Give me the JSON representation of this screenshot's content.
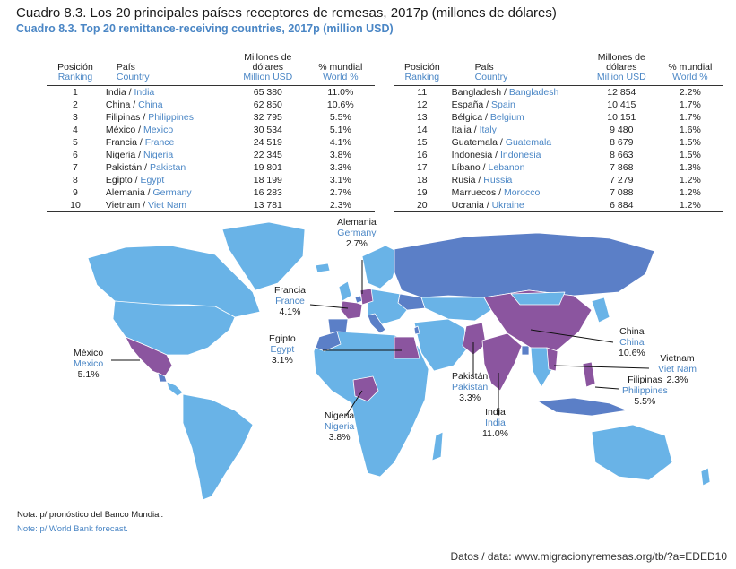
{
  "title": "Cuadro 8.3. Los 20 principales países receptores de remesas, 2017p (millones de dólares)",
  "subtitle": "Cuadro 8.3. Top 20 remittance-receiving countries, 2017p (million USD)",
  "headers": {
    "pos_es": "Posición",
    "pos_en": "Ranking",
    "country_es": "País",
    "country_en": "Country",
    "val_es": "Millones de dólares",
    "val_en": "Million USD",
    "pct_es": "% mundial",
    "pct_en": "World %"
  },
  "left_rows": [
    {
      "rank": "1",
      "es": "India",
      "en": "India",
      "value": "65 380",
      "pct": "11.0%"
    },
    {
      "rank": "2",
      "es": "China",
      "en": "China",
      "value": "62 850",
      "pct": "10.6%"
    },
    {
      "rank": "3",
      "es": "Filipinas",
      "en": "Philippines",
      "value": "32 795",
      "pct": "5.5%"
    },
    {
      "rank": "4",
      "es": "México",
      "en": "Mexico",
      "value": "30 534",
      "pct": "5.1%"
    },
    {
      "rank": "5",
      "es": "Francia",
      "en": "France",
      "value": "24 519",
      "pct": "4.1%"
    },
    {
      "rank": "6",
      "es": "Nigeria",
      "en": "Nigeria",
      "value": "22 345",
      "pct": "3.8%"
    },
    {
      "rank": "7",
      "es": "Pakistán",
      "en": "Pakistan",
      "value": "19 801",
      "pct": "3.3%"
    },
    {
      "rank": "8",
      "es": "Egipto",
      "en": "Egypt",
      "value": "18 199",
      "pct": "3.1%"
    },
    {
      "rank": "9",
      "es": "Alemania",
      "en": "Germany",
      "value": "16 283",
      "pct": "2.7%"
    },
    {
      "rank": "10",
      "es": "Vietnam",
      "en": "Viet Nam",
      "value": "13 781",
      "pct": "2.3%"
    }
  ],
  "right_rows": [
    {
      "rank": "11",
      "es": "Bangladesh",
      "en": "Bangladesh",
      "value": "12 854",
      "pct": "2.2%"
    },
    {
      "rank": "12",
      "es": "España",
      "en": "Spain",
      "value": "10 415",
      "pct": "1.7%"
    },
    {
      "rank": "13",
      "es": "Bélgica",
      "en": "Belgium",
      "value": "10 151",
      "pct": "1.7%"
    },
    {
      "rank": "14",
      "es": "Italia",
      "en": "Italy",
      "value": "9 480",
      "pct": "1.6%"
    },
    {
      "rank": "15",
      "es": "Guatemala",
      "en": "Guatemala",
      "value": "8 679",
      "pct": "1.5%"
    },
    {
      "rank": "16",
      "es": "Indonesia",
      "en": "Indonesia",
      "value": "8 663",
      "pct": "1.5%"
    },
    {
      "rank": "17",
      "es": "Líbano",
      "en": "Lebanon",
      "value": "7 868",
      "pct": "1.3%"
    },
    {
      "rank": "18",
      "es": "Rusia",
      "en": "Russia",
      "value": "7 279",
      "pct": "1.2%"
    },
    {
      "rank": "19",
      "es": "Marruecos",
      "en": "Morocco",
      "value": "7 088",
      "pct": "1.2%"
    },
    {
      "rank": "20",
      "es": "Ucrania",
      "en": "Ukraine",
      "value": "6 884",
      "pct": "1.2%"
    }
  ],
  "map_labels": {
    "germany": {
      "es": "Alemania",
      "en": "Germany",
      "pct": "2.7%"
    },
    "france": {
      "es": "Francia",
      "en": "France",
      "pct": "4.1%"
    },
    "egypt": {
      "es": "Egipto",
      "en": "Egypt",
      "pct": "3.1%"
    },
    "mexico": {
      "es": "México",
      "en": "Mexico",
      "pct": "5.1%"
    },
    "nigeria": {
      "es": "Nigeria",
      "en": "Nigeria",
      "pct": "3.8%"
    },
    "pakistan": {
      "es": "Pakistán",
      "en": "Pakistan",
      "pct": "3.3%"
    },
    "india": {
      "es": "India",
      "en": "India",
      "pct": "11.0%"
    },
    "china": {
      "es": "China",
      "en": "China",
      "pct": "10.6%"
    },
    "vietnam": {
      "es": "Vietnam",
      "en": "Viet Nam",
      "pct": "2.3%"
    },
    "philippines": {
      "es": "Filipinas",
      "en": "Philippines",
      "pct": "5.5%"
    }
  },
  "colors": {
    "top10": "#8b559f",
    "rank11_20": "#5b7fc7",
    "other": "#69b3e7",
    "accent_text": "#4a86c5"
  },
  "note_es": "Nota: p/ pronóstico del Banco Mundial.",
  "note_en": "Note: p/ World Bank forecast.",
  "source": "Datos / data: www.migracionyremesas.org/tb/?a=EDED10"
}
